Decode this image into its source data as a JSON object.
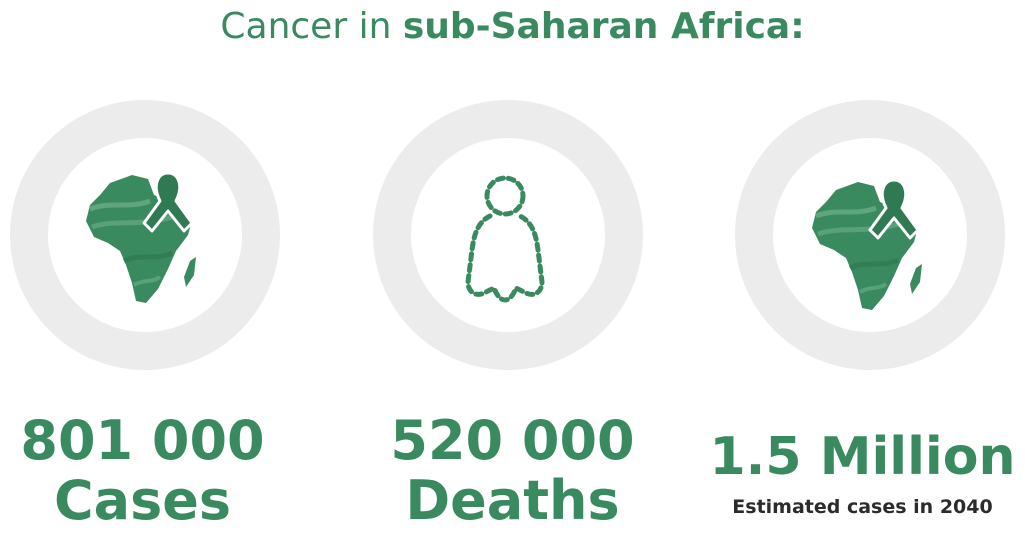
{
  "title": {
    "prefix": "Cancer in ",
    "emphasis": "sub-Saharan Africa:"
  },
  "stats": [
    {
      "icon": "africa-ribbon-icon",
      "number": "801 000",
      "label": "Cases"
    },
    {
      "icon": "dotted-person-icon",
      "number": "520 000",
      "label": "Deaths"
    },
    {
      "icon": "africa-ribbon-icon",
      "number": "1.5 Million",
      "note": "Estimated cases in 2040"
    }
  ],
  "colors": {
    "accent": "#3a8a5f",
    "ring": "#ececec",
    "note_text": "#2b2b2b"
  }
}
